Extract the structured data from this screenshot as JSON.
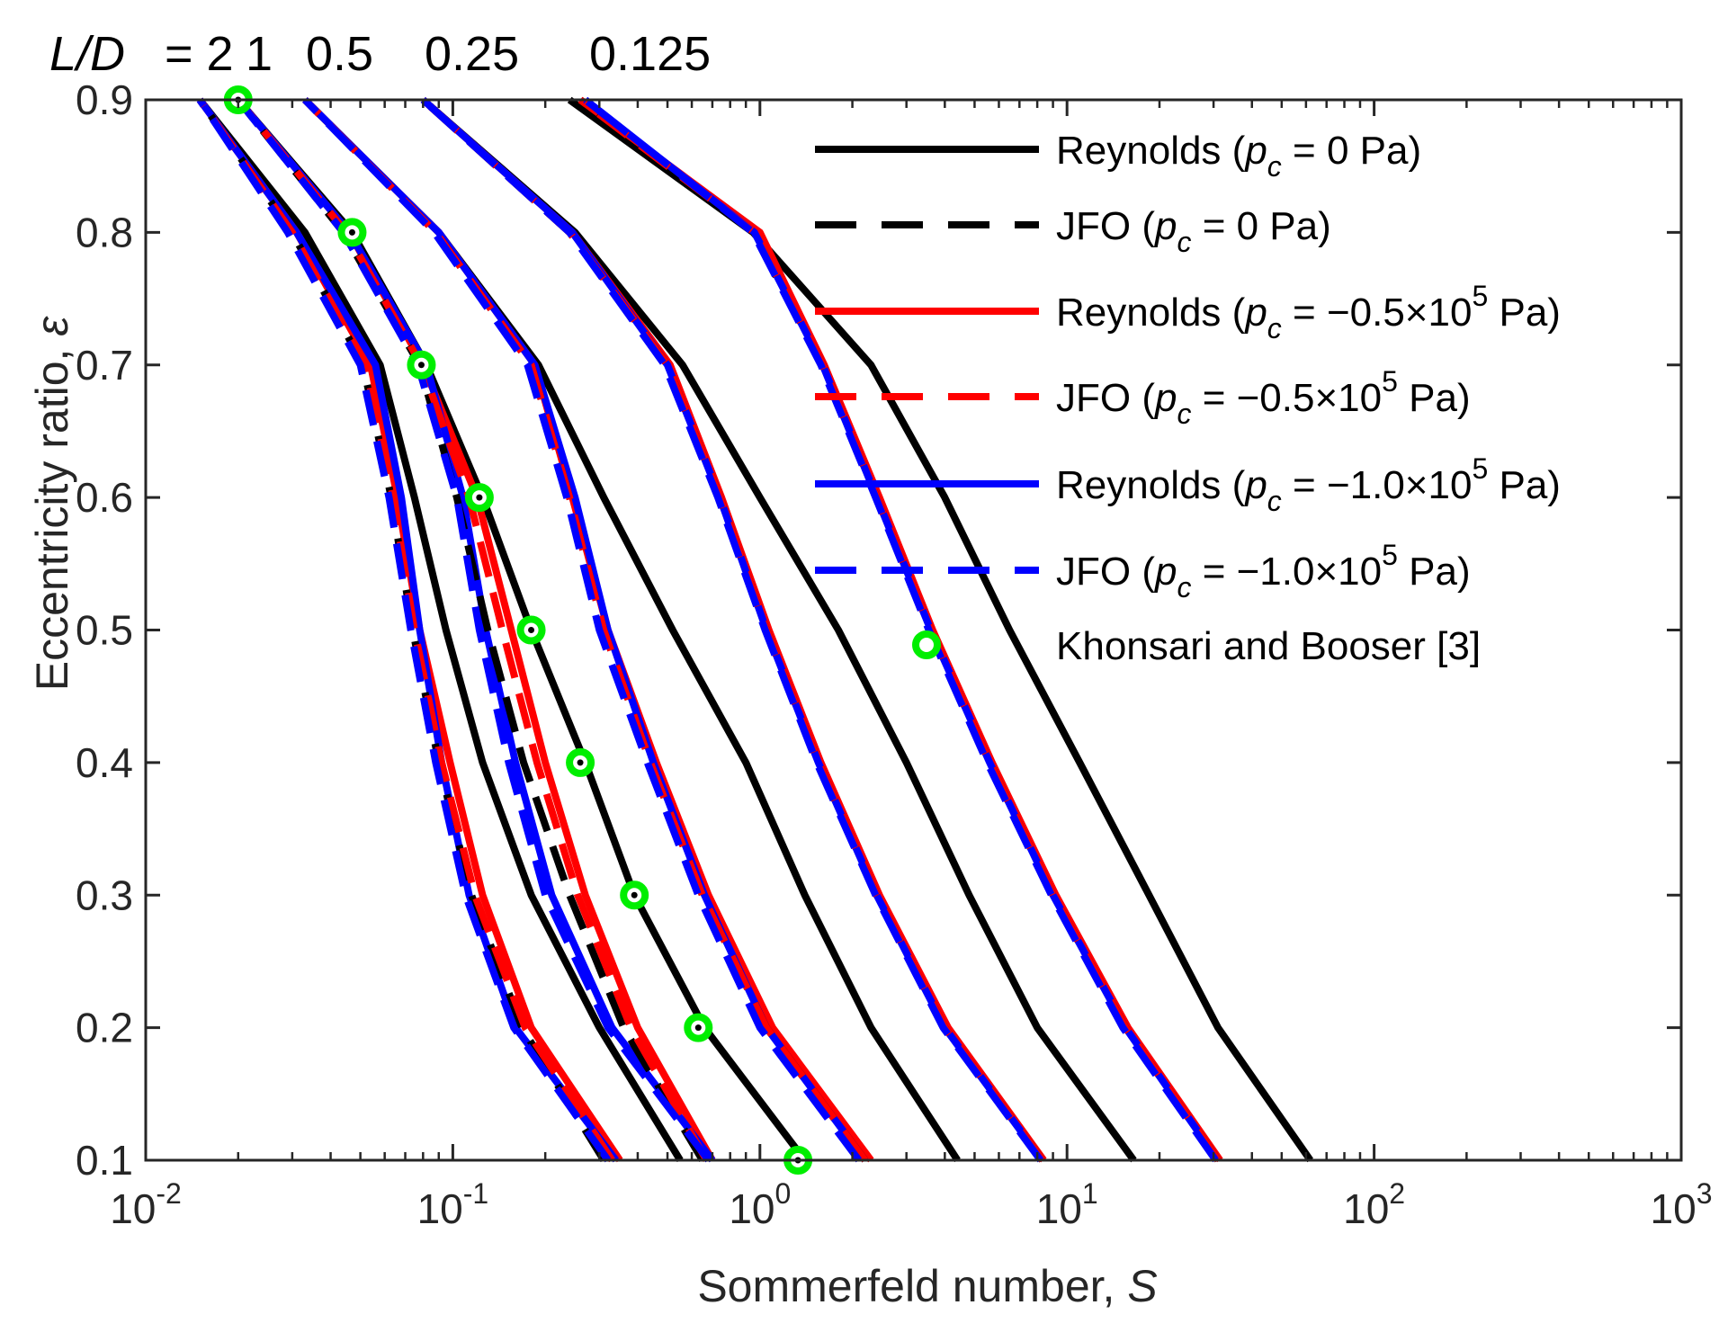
{
  "chart_data": {
    "type": "line",
    "title_prefix": "L/D",
    "ld_labels": [
      "= 2",
      "1",
      "0.5",
      "0.25",
      "0.125"
    ],
    "xlabel": "Sommerfeld number, ",
    "xlabel_symbol": "S",
    "ylabel": "Eccentricity ratio, ",
    "ylabel_symbol": "ε",
    "xscale": "log",
    "xlim": [
      0.01,
      1000
    ],
    "ylim": [
      0.1,
      0.9
    ],
    "x_ticks": [
      {
        "value": 0.01,
        "base": "10",
        "exp": "-2"
      },
      {
        "value": 0.1,
        "base": "10",
        "exp": "-1"
      },
      {
        "value": 1,
        "base": "10",
        "exp": "0"
      },
      {
        "value": 10,
        "base": "10",
        "exp": "1"
      },
      {
        "value": 100,
        "base": "10",
        "exp": "2"
      },
      {
        "value": 1000,
        "base": "10",
        "exp": "3"
      }
    ],
    "y_ticks": [
      "0.1",
      "0.2",
      "0.3",
      "0.4",
      "0.5",
      "0.6",
      "0.7",
      "0.8",
      "0.9"
    ],
    "y_tick_values": [
      0.1,
      0.2,
      0.3,
      0.4,
      0.5,
      0.6,
      0.7,
      0.8,
      0.9
    ],
    "eccentricity": [
      0.1,
      0.2,
      0.3,
      0.4,
      0.5,
      0.6,
      0.7,
      0.8,
      0.9
    ],
    "colors": {
      "black": "#000000",
      "red": "#ff0000",
      "blue": "#0000ff",
      "green": "#00ee00"
    },
    "legend": [
      {
        "prefix": "Reynolds (",
        "sym": "p",
        "sub": "c",
        "mid": " = 0 Pa)",
        "sup": "",
        "tail": "",
        "color": "#000000",
        "dash": "solid",
        "marker": false
      },
      {
        "prefix": "JFO (",
        "sym": "p",
        "sub": "c",
        "mid": " = 0 Pa)",
        "sup": "",
        "tail": "",
        "color": "#000000",
        "dash": "dashed",
        "marker": false
      },
      {
        "prefix": "Reynolds (",
        "sym": "p",
        "sub": "c",
        "mid": " = −0.5×10",
        "sup": "5",
        "tail": " Pa)",
        "color": "#ff0000",
        "dash": "solid",
        "marker": false
      },
      {
        "prefix": "JFO (",
        "sym": "p",
        "sub": "c",
        "mid": " = −0.5×10",
        "sup": "5",
        "tail": " Pa)",
        "color": "#ff0000",
        "dash": "dashed",
        "marker": false
      },
      {
        "prefix": "Reynolds (",
        "sym": "p",
        "sub": "c",
        "mid": " = −1.0×10",
        "sup": "5",
        "tail": " Pa)",
        "color": "#0000ff",
        "dash": "solid",
        "marker": false
      },
      {
        "prefix": "JFO (",
        "sym": "p",
        "sub": "c",
        "mid": " = −1.0×10",
        "sup": "5",
        "tail": " Pa)",
        "color": "#0000ff",
        "dash": "dashed",
        "marker": false
      },
      {
        "prefix": "Khonsari and Booser [3]",
        "sym": "",
        "sub": "",
        "mid": "",
        "sup": "",
        "tail": "",
        "color": "#00ee00",
        "dash": "none",
        "marker": true
      }
    ],
    "series": [
      {
        "name": "Reynolds pc=0, L/D=2",
        "color": "#000000",
        "dash": "solid",
        "S": [
          0.55,
          0.3,
          0.18,
          0.125,
          0.095,
          0.075,
          0.058,
          0.033,
          0.015
        ]
      },
      {
        "name": "JFO pc=0, L/D=2",
        "color": "#000000",
        "dash": "dashed",
        "S": [
          0.31,
          0.168,
          0.115,
          0.09,
          0.074,
          0.063,
          0.051,
          0.03,
          0.015
        ]
      },
      {
        "name": "Reynolds pc=-0.5e5, L/D=2",
        "color": "#ff0000",
        "dash": "solid",
        "S": [
          0.35,
          0.18,
          0.125,
          0.098,
          0.078,
          0.066,
          0.054,
          0.031,
          0.015
        ]
      },
      {
        "name": "JFO pc=-0.5e5, L/D=2",
        "color": "#ff0000",
        "dash": "dashed",
        "S": [
          0.33,
          0.172,
          0.118,
          0.092,
          0.075,
          0.064,
          0.052,
          0.03,
          0.015
        ]
      },
      {
        "name": "Reynolds pc=-1.0e5, L/D=2",
        "color": "#0000ff",
        "dash": "solid",
        "S": [
          0.34,
          0.16,
          0.113,
          0.092,
          0.078,
          0.068,
          0.056,
          0.031,
          0.015
        ]
      },
      {
        "name": "JFO pc=-1.0e5, L/D=2",
        "color": "#0000ff",
        "dash": "dashed",
        "S": [
          0.32,
          0.158,
          0.11,
          0.088,
          0.073,
          0.062,
          0.05,
          0.029,
          0.015
        ]
      },
      {
        "name": "Reynolds pc=0, L/D=1",
        "color": "#000000",
        "dash": "solid",
        "S": [
          1.4,
          0.66,
          0.39,
          0.27,
          0.18,
          0.125,
          0.082,
          0.047,
          0.02
        ]
      },
      {
        "name": "JFO pc=0, L/D=1",
        "color": "#000000",
        "dash": "dashed",
        "S": [
          0.65,
          0.36,
          0.24,
          0.17,
          0.13,
          0.103,
          0.078,
          0.044,
          0.02
        ]
      },
      {
        "name": "Reynolds pc=-0.5e5, L/D=1",
        "color": "#ff0000",
        "dash": "solid",
        "S": [
          0.7,
          0.4,
          0.27,
          0.2,
          0.155,
          0.12,
          0.08,
          0.046,
          0.02
        ]
      },
      {
        "name": "JFO pc=-0.5e5, L/D=1",
        "color": "#ff0000",
        "dash": "dashed",
        "S": [
          0.67,
          0.38,
          0.255,
          0.188,
          0.145,
          0.113,
          0.079,
          0.045,
          0.02
        ]
      },
      {
        "name": "Reynolds pc=-1.0e5, L/D=1",
        "color": "#0000ff",
        "dash": "solid",
        "S": [
          0.7,
          0.33,
          0.21,
          0.16,
          0.128,
          0.108,
          0.082,
          0.046,
          0.02
        ]
      },
      {
        "name": "JFO pc=-1.0e5, L/D=1",
        "color": "#0000ff",
        "dash": "dashed",
        "S": [
          0.68,
          0.32,
          0.2,
          0.152,
          0.122,
          0.103,
          0.077,
          0.044,
          0.02
        ]
      },
      {
        "name": "Reynolds pc=0, L/D=0.5",
        "color": "#000000",
        "dash": "solid",
        "S": [
          4.4,
          2.3,
          1.4,
          0.9,
          0.52,
          0.31,
          0.19,
          0.09,
          0.033
        ]
      },
      {
        "name": "JFO pc=0, L/D=0.5",
        "color": "#000000",
        "dash": "dashed",
        "S": [
          2.2,
          1.05,
          0.65,
          0.44,
          0.31,
          0.24,
          0.18,
          0.088,
          0.033
        ]
      },
      {
        "name": "Reynolds pc=-0.5e5, L/D=0.5",
        "color": "#ff0000",
        "dash": "solid",
        "S": [
          2.3,
          1.1,
          0.68,
          0.46,
          0.32,
          0.245,
          0.185,
          0.09,
          0.033
        ]
      },
      {
        "name": "JFO pc=-0.5e5, L/D=0.5",
        "color": "#ff0000",
        "dash": "dashed",
        "S": [
          2.2,
          1.05,
          0.65,
          0.44,
          0.31,
          0.24,
          0.18,
          0.088,
          0.033
        ]
      },
      {
        "name": "Reynolds pc=-1.0e5, L/D=0.5",
        "color": "#0000ff",
        "dash": "solid",
        "S": [
          2.2,
          1.05,
          0.66,
          0.45,
          0.32,
          0.25,
          0.185,
          0.09,
          0.033
        ]
      },
      {
        "name": "JFO pc=-1.0e5, L/D=0.5",
        "color": "#0000ff",
        "dash": "dashed",
        "S": [
          2.1,
          1.0,
          0.63,
          0.43,
          0.3,
          0.235,
          0.175,
          0.087,
          0.033
        ]
      },
      {
        "name": "Reynolds pc=0, L/D=0.25",
        "color": "#000000",
        "dash": "solid",
        "S": [
          16.5,
          8.0,
          4.8,
          3.0,
          1.8,
          1.0,
          0.56,
          0.25,
          0.08
        ]
      },
      {
        "name": "JFO pc=0, L/D=0.25",
        "color": "#000000",
        "dash": "dashed",
        "S": [
          8.3,
          4.0,
          2.4,
          1.55,
          1.05,
          0.74,
          0.5,
          0.24,
          0.08
        ]
      },
      {
        "name": "Reynolds pc=-0.5e5, L/D=0.25",
        "color": "#ff0000",
        "dash": "solid",
        "S": [
          8.4,
          4.1,
          2.45,
          1.58,
          1.07,
          0.75,
          0.51,
          0.245,
          0.08
        ]
      },
      {
        "name": "JFO pc=-0.5e5, L/D=0.25",
        "color": "#ff0000",
        "dash": "dashed",
        "S": [
          8.3,
          4.0,
          2.4,
          1.55,
          1.05,
          0.74,
          0.5,
          0.24,
          0.08
        ]
      },
      {
        "name": "Reynolds pc=-1.0e5, L/D=0.25",
        "color": "#0000ff",
        "dash": "solid",
        "S": [
          8.3,
          4.0,
          2.4,
          1.55,
          1.05,
          0.74,
          0.5,
          0.245,
          0.08
        ]
      },
      {
        "name": "JFO pc=-1.0e5, L/D=0.25",
        "color": "#0000ff",
        "dash": "dashed",
        "S": [
          8.2,
          3.95,
          2.38,
          1.53,
          1.04,
          0.73,
          0.49,
          0.24,
          0.08
        ]
      },
      {
        "name": "Reynolds pc=0, L/D=0.125",
        "color": "#000000",
        "dash": "solid",
        "S": [
          62,
          31,
          18.5,
          11.0,
          6.5,
          4.0,
          2.3,
          0.95,
          0.24
        ]
      },
      {
        "name": "JFO pc=0, L/D=0.125",
        "color": "#000000",
        "dash": "dashed",
        "S": [
          31,
          15.5,
          9.0,
          5.6,
          3.6,
          2.4,
          1.6,
          0.95,
          0.26
        ]
      },
      {
        "name": "Reynolds pc=-0.5e5, L/D=0.125",
        "color": "#ff0000",
        "dash": "solid",
        "S": [
          31.5,
          15.8,
          9.2,
          5.7,
          3.65,
          2.45,
          1.62,
          1.0,
          0.26
        ]
      },
      {
        "name": "JFO pc=-0.5e5, L/D=0.125",
        "color": "#ff0000",
        "dash": "dashed",
        "S": [
          31,
          15.5,
          9.0,
          5.6,
          3.6,
          2.4,
          1.6,
          0.96,
          0.26
        ]
      },
      {
        "name": "Reynolds pc=-1.0e5, L/D=0.125",
        "color": "#0000ff",
        "dash": "solid",
        "S": [
          31,
          15.5,
          9.0,
          5.6,
          3.6,
          2.4,
          1.6,
          0.96,
          0.27
        ]
      },
      {
        "name": "JFO pc=-1.0e5, L/D=0.125",
        "color": "#0000ff",
        "dash": "dashed",
        "S": [
          30.5,
          15.2,
          8.9,
          5.5,
          3.55,
          2.38,
          1.58,
          0.95,
          0.27
        ]
      }
    ],
    "reference_points": {
      "name": "Khonsari and Booser [3]",
      "color": "#00ee00",
      "S": [
        1.33,
        0.63,
        0.39,
        0.26,
        0.18,
        0.122,
        0.079,
        0.047,
        0.02
      ],
      "eps": [
        0.1,
        0.2,
        0.3,
        0.4,
        0.5,
        0.6,
        0.7,
        0.8,
        0.9
      ]
    }
  }
}
